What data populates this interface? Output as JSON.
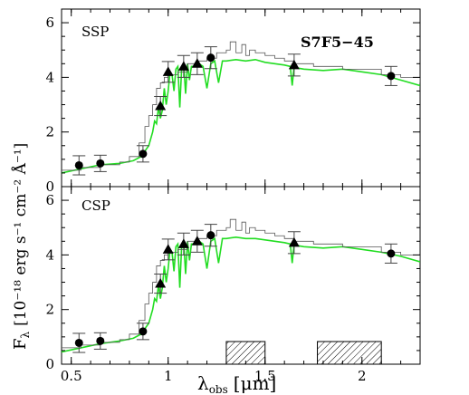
{
  "chart_data": [
    {
      "type": "line",
      "panel_label": "SSP",
      "object_label": "S7F5−45",
      "xlim": [
        0.45,
        2.3
      ],
      "ylim": [
        0,
        6.5
      ],
      "y_ticks": [
        0,
        2,
        4,
        6
      ],
      "series": [
        {
          "kind": "model",
          "color": "#22dd22",
          "x": [
            0.45,
            0.55,
            0.65,
            0.75,
            0.82,
            0.86,
            0.88,
            0.9,
            0.92,
            0.93,
            0.94,
            0.95,
            0.96,
            0.97,
            0.98,
            0.99,
            1.0,
            1.01,
            1.02,
            1.03,
            1.04,
            1.05,
            1.06,
            1.07,
            1.08,
            1.09,
            1.1,
            1.11,
            1.12,
            1.13,
            1.14,
            1.15,
            1.16,
            1.18,
            1.2,
            1.22,
            1.24,
            1.26,
            1.28,
            1.3,
            1.35,
            1.4,
            1.45,
            1.5,
            1.55,
            1.6,
            1.63,
            1.64,
            1.65,
            1.66,
            1.7,
            1.8,
            1.9,
            2.0,
            2.1,
            2.2,
            2.3
          ],
          "y": [
            0.5,
            0.65,
            0.8,
            0.85,
            0.95,
            1.1,
            1.3,
            1.5,
            2.0,
            2.4,
            2.3,
            2.9,
            2.5,
            2.8,
            3.6,
            3.0,
            3.5,
            4.2,
            4.1,
            3.5,
            4.3,
            4.4,
            2.9,
            4.4,
            4.5,
            3.4,
            4.5,
            3.9,
            4.4,
            4.4,
            4.4,
            4.5,
            4.5,
            4.4,
            3.6,
            4.5,
            4.6,
            3.8,
            4.6,
            4.6,
            4.65,
            4.6,
            4.65,
            4.55,
            4.5,
            4.45,
            4.4,
            3.7,
            4.4,
            4.35,
            4.3,
            4.25,
            4.3,
            4.2,
            4.1,
            3.9,
            3.7
          ]
        },
        {
          "kind": "data_spectrum",
          "color": "#555555",
          "x": [
            0.45,
            0.55,
            0.65,
            0.75,
            0.8,
            0.85,
            0.88,
            0.9,
            0.92,
            0.94,
            0.96,
            0.98,
            1.0,
            1.05,
            1.1,
            1.15,
            1.2,
            1.25,
            1.3,
            1.32,
            1.35,
            1.38,
            1.4,
            1.42,
            1.45,
            1.5,
            1.55,
            1.6,
            1.65,
            1.7,
            1.75,
            1.8,
            1.9,
            2.0,
            2.1,
            2.2,
            2.3
          ],
          "y": [
            0.6,
            0.7,
            0.8,
            0.9,
            1.1,
            1.6,
            2.2,
            2.6,
            3.0,
            3.6,
            3.8,
            4.0,
            4.1,
            4.2,
            4.5,
            4.6,
            4.7,
            4.9,
            5.0,
            5.3,
            4.9,
            5.2,
            4.8,
            5.0,
            4.9,
            4.8,
            4.7,
            4.6,
            4.5,
            4.5,
            4.4,
            4.4,
            4.3,
            4.3,
            4.1,
            4.0,
            3.8
          ]
        },
        {
          "kind": "photometry",
          "marker": "circle",
          "x": [
            0.54,
            0.65,
            0.87,
            1.22,
            2.15
          ],
          "y": [
            0.78,
            0.85,
            1.2,
            4.72,
            4.05
          ],
          "err": [
            0.35,
            0.3,
            0.3,
            0.4,
            0.35
          ]
        },
        {
          "kind": "photometry",
          "marker": "triangle",
          "x": [
            0.96,
            1.0,
            1.08,
            1.15,
            1.65
          ],
          "y": [
            2.95,
            4.2,
            4.4,
            4.5,
            4.45
          ],
          "err": [
            0.35,
            0.38,
            0.4,
            0.4,
            0.4
          ]
        }
      ]
    },
    {
      "type": "line",
      "panel_label": "CSP",
      "xlim": [
        0.45,
        2.3
      ],
      "ylim": [
        0,
        6.5
      ],
      "y_ticks": [
        0,
        2,
        4,
        6
      ],
      "x_ticks": [
        0.5,
        1,
        1.5,
        2
      ],
      "xlabel": "λ",
      "xlabel_sub": "obs",
      "xlabel_unit": "[μm]",
      "ylabel": "F",
      "ylabel_sub": "λ",
      "ylabel_unit": "[10⁻¹⁸ erg s⁻¹ cm⁻² Å⁻¹]",
      "bands": [
        [
          1.3,
          1.5
        ],
        [
          1.77,
          2.1
        ]
      ],
      "series": [
        {
          "kind": "model",
          "color": "#22dd22",
          "x": [
            0.45,
            0.55,
            0.65,
            0.75,
            0.82,
            0.86,
            0.88,
            0.9,
            0.92,
            0.93,
            0.94,
            0.95,
            0.96,
            0.97,
            0.98,
            0.99,
            1.0,
            1.01,
            1.02,
            1.03,
            1.04,
            1.05,
            1.06,
            1.07,
            1.08,
            1.09,
            1.1,
            1.11,
            1.12,
            1.13,
            1.14,
            1.15,
            1.16,
            1.18,
            1.2,
            1.22,
            1.24,
            1.26,
            1.28,
            1.3,
            1.35,
            1.4,
            1.45,
            1.5,
            1.55,
            1.6,
            1.63,
            1.64,
            1.65,
            1.66,
            1.7,
            1.8,
            1.9,
            2.0,
            2.1,
            2.2,
            2.3
          ],
          "y": [
            0.45,
            0.6,
            0.75,
            0.85,
            0.95,
            1.1,
            1.3,
            1.5,
            2.0,
            2.4,
            2.3,
            2.9,
            2.4,
            2.8,
            3.6,
            3.0,
            3.5,
            4.2,
            4.1,
            3.4,
            4.3,
            4.4,
            2.8,
            4.4,
            4.5,
            3.3,
            4.5,
            3.8,
            4.4,
            4.4,
            4.45,
            4.5,
            4.5,
            4.4,
            3.5,
            4.5,
            4.6,
            3.7,
            4.6,
            4.6,
            4.65,
            4.6,
            4.6,
            4.55,
            4.5,
            4.45,
            4.4,
            3.7,
            4.4,
            4.35,
            4.3,
            4.25,
            4.3,
            4.2,
            4.1,
            3.95,
            3.75
          ]
        },
        {
          "kind": "data_spectrum",
          "color": "#555555",
          "x": [
            0.45,
            0.55,
            0.65,
            0.75,
            0.8,
            0.85,
            0.88,
            0.9,
            0.92,
            0.94,
            0.96,
            0.98,
            1.0,
            1.05,
            1.1,
            1.15,
            1.2,
            1.25,
            1.3,
            1.32,
            1.35,
            1.38,
            1.4,
            1.42,
            1.45,
            1.5,
            1.55,
            1.6,
            1.65,
            1.7,
            1.75,
            1.8,
            1.9,
            2.0,
            2.1,
            2.2,
            2.3
          ],
          "y": [
            0.6,
            0.7,
            0.8,
            0.9,
            1.1,
            1.6,
            2.2,
            2.6,
            3.0,
            3.6,
            3.8,
            4.0,
            4.1,
            4.2,
            4.5,
            4.6,
            4.7,
            4.9,
            5.0,
            5.3,
            4.9,
            5.2,
            4.8,
            5.0,
            4.9,
            4.8,
            4.7,
            4.6,
            4.5,
            4.5,
            4.4,
            4.4,
            4.3,
            4.3,
            4.1,
            4.0,
            3.8
          ]
        },
        {
          "kind": "photometry",
          "marker": "circle",
          "x": [
            0.54,
            0.65,
            0.87,
            1.22,
            2.15
          ],
          "y": [
            0.78,
            0.85,
            1.2,
            4.72,
            4.05
          ],
          "err": [
            0.35,
            0.3,
            0.3,
            0.4,
            0.35
          ]
        },
        {
          "kind": "photometry",
          "marker": "triangle",
          "x": [
            0.96,
            1.0,
            1.08,
            1.15,
            1.65
          ],
          "y": [
            2.95,
            4.2,
            4.4,
            4.5,
            4.45
          ],
          "err": [
            0.35,
            0.38,
            0.4,
            0.4,
            0.4
          ]
        }
      ]
    }
  ]
}
